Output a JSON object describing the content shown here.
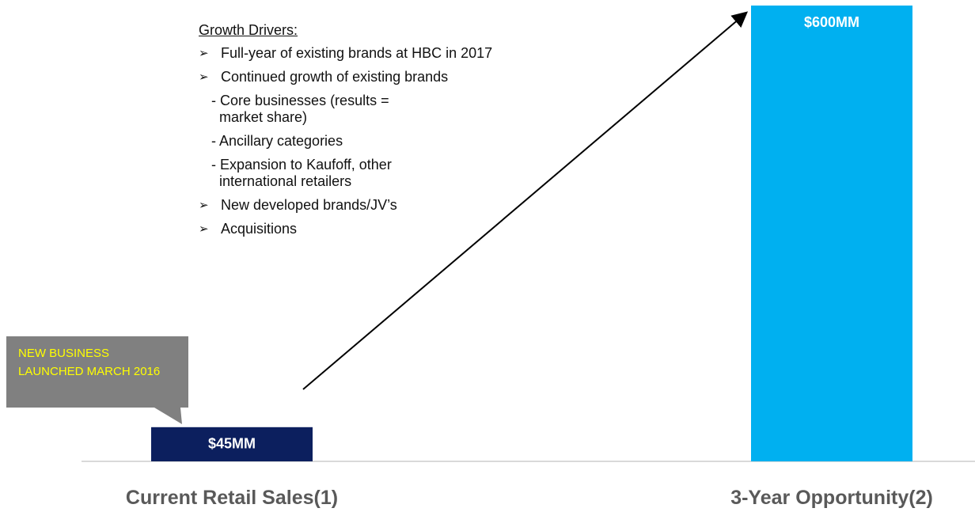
{
  "chart_data": {
    "type": "bar",
    "categories": [
      "Current Retail Sales(1)",
      "3-Year Opportunity(2)"
    ],
    "values": [
      45,
      600
    ],
    "value_labels": [
      "$45MM",
      "$600MM"
    ],
    "colors": [
      "#0c1f5e",
      "#00b0f0"
    ],
    "annotations": {
      "callout": "NEW BUSINESS LAUNCHED MARCH 2016",
      "drivers_title": "Growth Drivers:",
      "drivers": [
        {
          "text": "Full-year of existing brands at HBC in 2017"
        },
        {
          "text": "Continued growth of existing brands",
          "sub": [
            "- Core businesses (results = market share)",
            "- Ancillary categories",
            "- Expansion to Kaufoff, other international retailers"
          ]
        },
        {
          "text": "New developed brands/JV’s"
        },
        {
          "text": "Acquisitions"
        }
      ]
    }
  }
}
